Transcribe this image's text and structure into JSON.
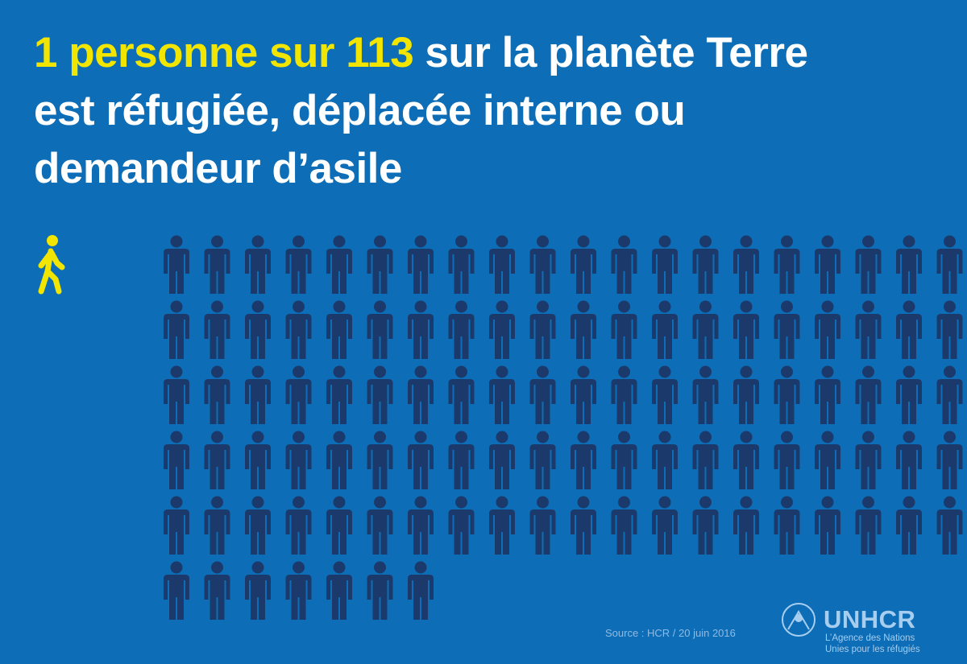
{
  "title": {
    "segments": [
      {
        "text": "1 personne sur ",
        "highlight": true
      },
      {
        "text": "113",
        "highlight": true
      },
      {
        "text": " sur la planète Terre",
        "highlight": false
      },
      {
        "text": "est réfugiée, déplacée interne ou",
        "highlight": false
      },
      {
        "text": "demandeur d’asile",
        "highlight": false
      }
    ]
  },
  "pictogram": {
    "highlighted": 1,
    "total": 113,
    "per_row": 21,
    "highlight_color": "#f2e600",
    "color": "#1b3a6b"
  },
  "source": "Source : HCR / 20 juin 2016",
  "logo": {
    "name": "UNHCR",
    "line1": "L’Agence des Nations",
    "line2": "Unies pour les réfugiés"
  }
}
